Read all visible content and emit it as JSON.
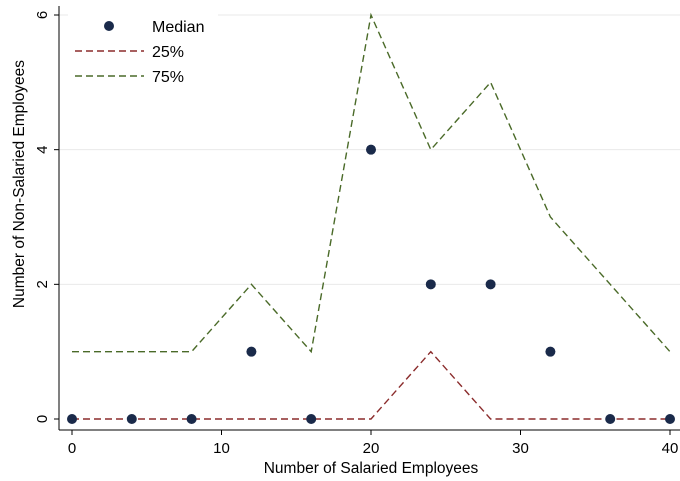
{
  "chart_data": {
    "type": "line",
    "title": "",
    "xlabel": "Number of Salaried Employees",
    "ylabel": "Number of Non-Salaried Employees",
    "xlim": [
      0,
      40
    ],
    "ylim": [
      0,
      6
    ],
    "xticks": [
      0,
      10,
      20,
      30,
      40
    ],
    "yticks": [
      0,
      2,
      4,
      6
    ],
    "grid": "horizontal",
    "legend_position": "top-left",
    "x": [
      0,
      4,
      8,
      12,
      16,
      20,
      24,
      28,
      32,
      36,
      40
    ],
    "series": [
      {
        "name": "Median",
        "style": "markers",
        "color": "#1a2a4a",
        "values": [
          0,
          0,
          0,
          1,
          0,
          4,
          2,
          2,
          1,
          0,
          0
        ]
      },
      {
        "name": "25%",
        "style": "dashed",
        "color": "#8b2c2c",
        "values": [
          0,
          0,
          0,
          0,
          0,
          0,
          1,
          0,
          0,
          0,
          0
        ]
      },
      {
        "name": "75%",
        "style": "dashed",
        "color": "#4a6a28",
        "values": [
          1,
          1,
          1,
          2,
          1,
          6,
          4,
          5,
          3,
          2,
          1
        ]
      }
    ]
  }
}
